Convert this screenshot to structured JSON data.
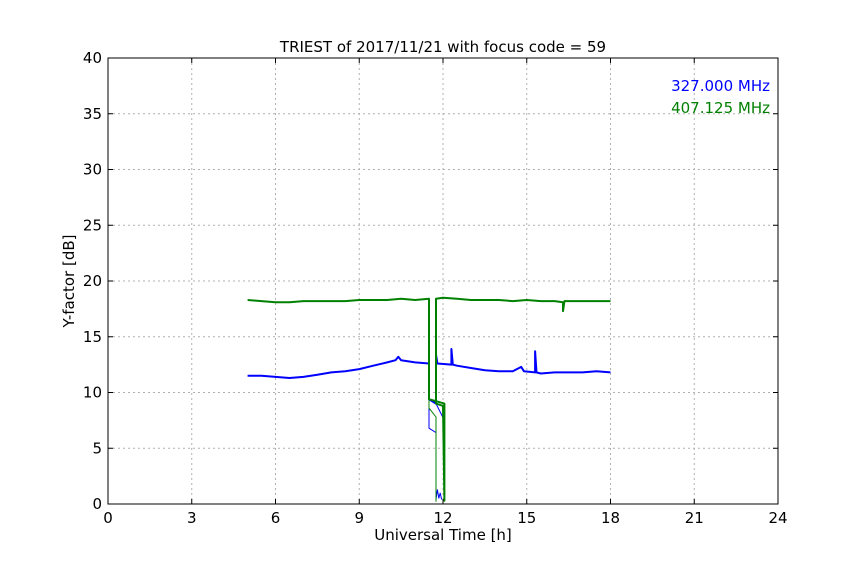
{
  "chart_data": {
    "type": "line",
    "title": "TRIEST of 2017/11/21 with focus code = 59",
    "xlabel": "Universal Time [h]",
    "ylabel": "Y-factor [dB]",
    "xlim": [
      0,
      24
    ],
    "ylim": [
      0,
      40
    ],
    "xticks": [
      0,
      3,
      6,
      9,
      12,
      15,
      18,
      21,
      24
    ],
    "yticks": [
      0,
      5,
      10,
      15,
      20,
      25,
      30,
      35,
      40
    ],
    "grid": true,
    "legend_placement": "top-right",
    "series": [
      {
        "name": "327.000 MHz",
        "color": "#0000ff",
        "points": [
          [
            5.0,
            11.5
          ],
          [
            5.5,
            11.5
          ],
          [
            6.0,
            11.4
          ],
          [
            6.5,
            11.3
          ],
          [
            7.0,
            11.4
          ],
          [
            7.5,
            11.6
          ],
          [
            8.0,
            11.8
          ],
          [
            8.5,
            11.9
          ],
          [
            9.0,
            12.1
          ],
          [
            9.5,
            12.4
          ],
          [
            10.0,
            12.7
          ],
          [
            10.3,
            12.9
          ],
          [
            10.4,
            13.2
          ],
          [
            10.5,
            12.9
          ],
          [
            11.0,
            12.7
          ],
          [
            11.5,
            12.6
          ],
          [
            11.5,
            9.4
          ],
          [
            11.75,
            9.0
          ],
          [
            11.75,
            13.4
          ],
          [
            11.8,
            12.6
          ],
          [
            12.3,
            12.5
          ],
          [
            12.3,
            13.9
          ],
          [
            12.35,
            12.5
          ],
          [
            12.5,
            12.4
          ],
          [
            13.0,
            12.2
          ],
          [
            13.5,
            12.0
          ],
          [
            14.0,
            11.9
          ],
          [
            14.5,
            11.9
          ],
          [
            14.8,
            12.3
          ],
          [
            14.9,
            11.9
          ],
          [
            15.3,
            11.8
          ],
          [
            15.3,
            13.7
          ],
          [
            15.35,
            11.8
          ],
          [
            15.5,
            11.7
          ],
          [
            16.0,
            11.8
          ],
          [
            16.5,
            11.8
          ],
          [
            17.0,
            11.8
          ],
          [
            17.5,
            11.9
          ],
          [
            18.0,
            11.8
          ]
        ]
      },
      {
        "name": "407.125 MHz",
        "color": "#008000",
        "points": [
          [
            5.0,
            18.3
          ],
          [
            5.5,
            18.2
          ],
          [
            6.0,
            18.1
          ],
          [
            6.5,
            18.1
          ],
          [
            7.0,
            18.2
          ],
          [
            7.5,
            18.2
          ],
          [
            8.0,
            18.2
          ],
          [
            8.5,
            18.2
          ],
          [
            9.0,
            18.3
          ],
          [
            9.5,
            18.3
          ],
          [
            10.0,
            18.3
          ],
          [
            10.5,
            18.4
          ],
          [
            11.0,
            18.3
          ],
          [
            11.5,
            18.4
          ],
          [
            11.5,
            9.4
          ],
          [
            12.05,
            9.0
          ],
          [
            12.05,
            0.3
          ],
          [
            12.0,
            8.8
          ],
          [
            11.75,
            9.0
          ],
          [
            11.75,
            18.4
          ],
          [
            12.0,
            18.5
          ],
          [
            12.5,
            18.4
          ],
          [
            13.0,
            18.3
          ],
          [
            13.5,
            18.3
          ],
          [
            14.0,
            18.3
          ],
          [
            14.5,
            18.2
          ],
          [
            15.0,
            18.3
          ],
          [
            15.5,
            18.2
          ],
          [
            16.0,
            18.2
          ],
          [
            16.3,
            18.1
          ],
          [
            16.3,
            17.3
          ],
          [
            16.35,
            18.2
          ],
          [
            16.5,
            18.2
          ],
          [
            17.0,
            18.2
          ],
          [
            17.5,
            18.2
          ],
          [
            18.0,
            18.2
          ]
        ]
      }
    ],
    "extra_segments": [
      {
        "color": "#0000ff",
        "points": [
          [
            11.5,
            9.4
          ],
          [
            11.5,
            6.8
          ],
          [
            11.75,
            6.4
          ],
          [
            11.75,
            0.4
          ],
          [
            11.8,
            1.3
          ],
          [
            11.85,
            0.5
          ],
          [
            11.9,
            1.0
          ],
          [
            11.95,
            0.4
          ]
        ]
      },
      {
        "color": "#0000ff",
        "points": [
          [
            11.75,
            9.0
          ],
          [
            12.05,
            7.5
          ],
          [
            12.05,
            0.3
          ]
        ]
      },
      {
        "color": "#008000",
        "points": [
          [
            11.5,
            18.4
          ],
          [
            11.5,
            8.6
          ],
          [
            11.75,
            7.8
          ],
          [
            11.75,
            0.2
          ]
        ]
      }
    ]
  }
}
